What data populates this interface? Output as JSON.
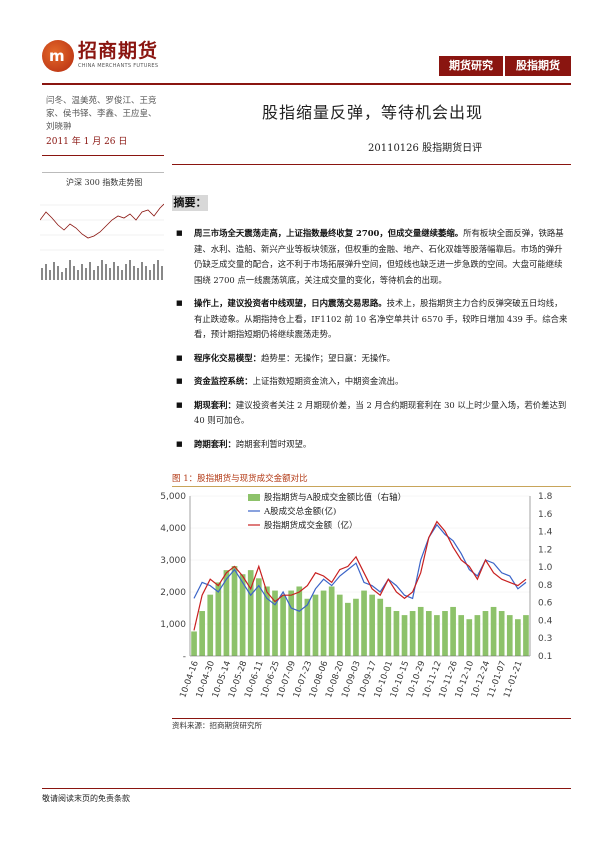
{
  "header": {
    "logo_mark": "m",
    "logo_name": "招商期货",
    "logo_en": "CHINA MERCHANTS FUTURES",
    "tabs": [
      "期货研究",
      "股指期货"
    ]
  },
  "sidebar": {
    "authors": "闫冬、温美苑、罗俊江、王竞家、侯书铎、李鑫、王应皇、刘晓翀",
    "date": "2011 年 1 月 26 日",
    "mini_chart_title": "沪深 300 指数走势图"
  },
  "report": {
    "headline": "股指缩量反弹，等待机会出现",
    "subtitle": "20110126 股指期货日评",
    "abstract_label": "摘要："
  },
  "bullets": [
    {
      "lead": "周三市场全天震荡走高，上证指数最终收复 2700，但成交量继续萎缩。",
      "text": "所有板块全面反弹，铁路基建、水利、造船、新兴产业等板块领涨，但权重的金融、地产、石化双雄等股落幅靠后。市场的弹升仍缺乏成交量的配合，这不利于市场拓展弹升空间，但短线也缺乏进一步急跌的空间。大盘可能继续围绕 2700 点一线震荡筑底，关注成交量的变化，等待机会的出现。"
    },
    {
      "lead": "操作上，建议投资者中线观望，日内震荡交易思路。",
      "text": "技术上，股指期货主力合约反弹突破五日均线，有止跌迹象。从期指持仓上看，IF1102 前 10 名净空单共计 6570 手，较昨日增加 439 手。综合来看，预计期指短期仍将继续震荡走势。"
    },
    {
      "lead": "程序化交易模型：",
      "text": "趋势星：无操作；望日赢：无操作。"
    },
    {
      "lead": "资金监控系统：",
      "text": "上证指数短期资金流入，中期资金流出。"
    },
    {
      "lead": "期现套利：",
      "text": "建议投资者关注 2 月期现价差，当 2 月合约期现套利在 30 以上时少量入场，若价差达到 40 则可加仓。"
    },
    {
      "lead": "跨期套利：",
      "text": "跨期套利暂时观望。"
    }
  ],
  "figure": {
    "title": "图 1：股指期货与现货成交金额对比",
    "source": "资料来源：招商期货研究所"
  },
  "footer": {
    "disclaimer": "敬请阅读末页的免责条款"
  },
  "chart_data": {
    "type": "bar",
    "title": "",
    "legend": [
      "股指期货与A股成交金额比值（右轴）",
      "A股成交总金额(亿)",
      "股指期货成交金额（亿）"
    ],
    "y_left_ticks": [
      "5,000",
      "4,000",
      "3,000",
      "2,000",
      "1,000",
      "-"
    ],
    "y_left_range": [
      0,
      5000
    ],
    "y_right_ticks": [
      "1.8",
      "1.6",
      "1.4",
      "1.2",
      "1.0",
      "0.8",
      "0.6",
      "0.4",
      "0.3",
      "0.1"
    ],
    "x_labels": [
      "10-04-16",
      "10-04-30",
      "10-05-14",
      "10-05-28",
      "10-06-11",
      "10-06-25",
      "10-07-09",
      "10-07-23",
      "10-08-06",
      "10-08-20",
      "10-09-03",
      "10-09-17",
      "10-10-01",
      "10-10-15",
      "10-10-29",
      "10-11-12",
      "10-11-26",
      "10-12-10",
      "10-12-24",
      "11-01-07",
      "11-01-21"
    ],
    "colors": {
      "ratio": "#8dc26a",
      "a_share": "#3b64c8",
      "futures": "#c82020"
    },
    "series": [
      {
        "name": "股指期货与A股成交金额比值（右轴）",
        "values": [
          0.3,
          0.55,
          0.75,
          0.9,
          1.05,
          1.1,
          1.0,
          1.05,
          0.95,
          0.85,
          0.8,
          0.75,
          0.8,
          0.85,
          0.7,
          0.75,
          0.8,
          0.85,
          0.75,
          0.65,
          0.7,
          0.8,
          0.75,
          0.7,
          0.6,
          0.55,
          0.5,
          0.55,
          0.6,
          0.55,
          0.5,
          0.55,
          0.6,
          0.5,
          0.45,
          0.5,
          0.55,
          0.6,
          0.55,
          0.5,
          0.45,
          0.5
        ]
      },
      {
        "name": "A股成交总金额(亿)",
        "values": [
          1800,
          2300,
          2200,
          2000,
          2400,
          2700,
          2300,
          1900,
          2200,
          1800,
          1600,
          2000,
          1500,
          1400,
          1600,
          2100,
          2400,
          2200,
          2500,
          2700,
          2900,
          2300,
          2200,
          2000,
          2400,
          2200,
          1900,
          1800,
          3000,
          3700,
          4100,
          3800,
          3600,
          3200,
          2700,
          2500,
          3000,
          2900,
          2600,
          2500,
          2100,
          2300
        ]
      },
      {
        "name": "股指期货成交金额（亿）",
        "values": [
          800,
          1900,
          2400,
          2200,
          2600,
          2800,
          2500,
          2100,
          2800,
          2000,
          1700,
          1900,
          1900,
          2000,
          2200,
          2600,
          2500,
          2300,
          2700,
          2800,
          3100,
          2600,
          2100,
          1900,
          2400,
          2000,
          1800,
          2000,
          2600,
          3700,
          4200,
          3900,
          3400,
          3000,
          2800,
          2400,
          3000,
          2600,
          2400,
          2300,
          2200,
          2400
        ]
      }
    ]
  }
}
